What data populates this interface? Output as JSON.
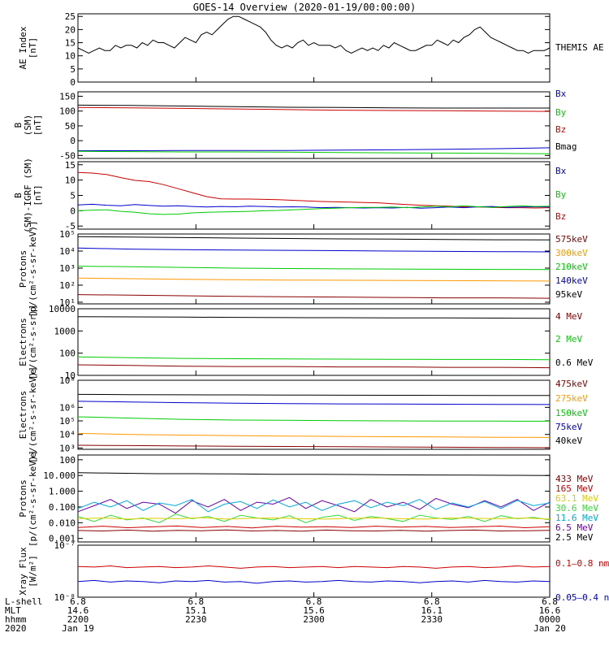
{
  "title": "GOES-14 Overview (2020-01-19/00:00:00)",
  "colors": {
    "black": "#000000",
    "red": "#cc0000",
    "green": "#00cc00",
    "blue": "#0000cc",
    "orange": "#ff9900",
    "cyan": "#00aadd",
    "darkred": "#880000",
    "lightgreen": "#33dd33",
    "yellow": "#ddcc00",
    "purple": "#6600aa"
  },
  "footer": {
    "row_labels": [
      "L-shell",
      "MLT",
      "hhmm",
      "2020"
    ],
    "columns": [
      {
        "rows": [
          "6.8",
          "14.6",
          "2200",
          "Jan 19"
        ]
      },
      {
        "rows": [
          "6.8",
          "15.1",
          "2230",
          ""
        ]
      },
      {
        "rows": [
          "6.8",
          "15.6",
          "2300",
          ""
        ]
      },
      {
        "rows": [
          "6.8",
          "16.1",
          "2330",
          ""
        ]
      },
      {
        "rows": [
          "6.8",
          "16.6",
          "0000",
          "Jan 20"
        ]
      }
    ]
  },
  "chart_data": [
    {
      "type": "line",
      "ylabel": [
        "AE Index",
        "[nT]"
      ],
      "ylim": [
        0,
        26
      ],
      "yticks": [
        "0",
        "5",
        "10",
        "15",
        "20",
        "25"
      ],
      "ytick_values": [
        0,
        5,
        10,
        15,
        20,
        25
      ],
      "series": [
        {
          "name": "THEMIS AE",
          "color": "black",
          "values": [
            13,
            12,
            11,
            12,
            13,
            12,
            12,
            14,
            13,
            14,
            14,
            13,
            15,
            14,
            16,
            15,
            15,
            14,
            13,
            15,
            17,
            16,
            15,
            18,
            19,
            18,
            20,
            22,
            24,
            25,
            25,
            24,
            23,
            22,
            21,
            19,
            16,
            14,
            13,
            14,
            13,
            15,
            16,
            14,
            15,
            14,
            14,
            14,
            13,
            14,
            12,
            11,
            12,
            13,
            12,
            13,
            12,
            14,
            13,
            15,
            14,
            13,
            12,
            12,
            13,
            14,
            14,
            16,
            15,
            14,
            16,
            15,
            17,
            18,
            20,
            21,
            19,
            17,
            16,
            15,
            14,
            13,
            12,
            12,
            11,
            12,
            12,
            12,
            13
          ]
        }
      ]
    },
    {
      "type": "line",
      "ylabel": [
        "B",
        "(SM)",
        "[nT]"
      ],
      "ylim": [
        -60,
        165
      ],
      "yticks": [
        "-50",
        "0",
        "50",
        "100",
        "150"
      ],
      "ytick_values": [
        -50,
        0,
        50,
        100,
        150
      ],
      "legend": [
        "Bx",
        "By",
        "Bz",
        "Bmag"
      ],
      "legend_colors": [
        "blue",
        "green",
        "red",
        "black"
      ],
      "series": [
        {
          "name": "Bmag",
          "color": "black",
          "values": [
            120,
            119,
            117,
            115,
            113,
            112,
            111,
            110,
            110,
            110
          ]
        },
        {
          "name": "Bz",
          "color": "red",
          "values": [
            112,
            111,
            109,
            107,
            105,
            103,
            102,
            101,
            100,
            99
          ]
        },
        {
          "name": "Bx",
          "color": "blue",
          "values": [
            -34,
            -34,
            -33,
            -33,
            -33,
            -32,
            -31,
            -29,
            -27,
            -24
          ]
        },
        {
          "name": "By",
          "color": "green",
          "values": [
            -36,
            -37,
            -38,
            -38,
            -39,
            -40,
            -41,
            -42,
            -43,
            -44
          ]
        }
      ]
    },
    {
      "type": "line",
      "ylabel": [
        "B",
        "(SM)-IGRF (SM)",
        "[nT]"
      ],
      "ylim": [
        -6,
        16
      ],
      "yticks": [
        "-5",
        "0",
        "5",
        "10",
        "15"
      ],
      "ytick_values": [
        -5,
        0,
        5,
        10,
        15
      ],
      "legend": [
        "Bx",
        "By",
        "Bz"
      ],
      "legend_colors": [
        "blue",
        "green",
        "red"
      ],
      "series": [
        {
          "name": "Bz",
          "color": "red",
          "values": [
            12.5,
            12.3,
            11.8,
            10.8,
            9.9,
            9.5,
            8.5,
            7.2,
            5.9,
            4.6,
            3.9,
            3.8,
            3.8,
            3.7,
            3.6,
            3.4,
            3.2,
            3.0,
            2.9,
            2.8,
            2.7,
            2.6,
            2.3,
            2.0,
            1.8,
            1.6,
            1.5,
            1.3,
            1.2,
            1.1,
            1.0,
            1.0,
            0.9,
            1.0
          ]
        },
        {
          "name": "Bx",
          "color": "blue",
          "values": [
            1.9,
            2.1,
            1.8,
            1.6,
            2.0,
            1.7,
            1.5,
            1.6,
            1.4,
            1.2,
            1.4,
            1.3,
            1.5,
            1.4,
            1.2,
            1.3,
            1.2,
            1.0,
            1.1,
            1.0,
            0.9,
            1.0,
            0.9,
            1.1,
            0.8,
            1.0,
            1.2,
            1.0,
            1.3,
            1.4,
            1.1,
            1.2,
            1.3,
            1.2
          ]
        },
        {
          "name": "By",
          "color": "green",
          "values": [
            0.0,
            0.2,
            0.3,
            -0.2,
            -0.5,
            -1.0,
            -1.2,
            -1.1,
            -0.7,
            -0.5,
            -0.4,
            -0.3,
            -0.2,
            0.0,
            0.1,
            0.3,
            0.5,
            0.7,
            0.8,
            1.0,
            1.1,
            1.1,
            1.2,
            1.0,
            1.2,
            1.5,
            1.3,
            1.6,
            1.3,
            1.1,
            1.4,
            1.6,
            1.4,
            1.5
          ]
        }
      ]
    },
    {
      "type": "line",
      "scale": "log",
      "ylabel": [
        "Protons",
        "[p/(cm²-s-sr-keV)]"
      ],
      "ylim": [
        8,
        100000
      ],
      "yticks": [
        "10¹",
        "10²",
        "10³",
        "10⁴",
        "10⁵"
      ],
      "ytick_values": [
        10,
        100,
        1000,
        10000,
        100000
      ],
      "legend": [
        "575keV",
        "300keV",
        "210keV",
        "140keV",
        "95keV"
      ],
      "legend_colors": [
        "darkred",
        "orange",
        "green",
        "blue",
        "black"
      ],
      "series": [
        {
          "name": "95keV",
          "color": "black",
          "values": [
            70000,
            66000,
            62000,
            58000,
            55000,
            52000,
            50000,
            48000,
            46000,
            45000
          ]
        },
        {
          "name": "140keV",
          "color": "blue",
          "values": [
            15000,
            13000,
            12000,
            11500,
            11000,
            10500,
            10000,
            9600,
            9300,
            9000
          ]
        },
        {
          "name": "210keV",
          "color": "green",
          "values": [
            1300,
            1200,
            1100,
            1000,
            950,
            900,
            880,
            860,
            840,
            820
          ]
        },
        {
          "name": "300keV",
          "color": "orange",
          "values": [
            260,
            240,
            220,
            210,
            200,
            195,
            190,
            185,
            180,
            175
          ]
        },
        {
          "name": "575keV",
          "color": "darkred",
          "values": [
            28,
            26,
            24,
            22,
            21,
            20,
            19,
            18,
            18,
            17
          ]
        }
      ]
    },
    {
      "type": "line",
      "scale": "log",
      "ylabel": [
        "Electrons",
        "[e/(cm²-s-sr)]"
      ],
      "ylim": [
        10,
        10000
      ],
      "yticks": [
        "10",
        "100",
        "1000",
        "10000"
      ],
      "ytick_values": [
        10,
        100,
        1000,
        10000
      ],
      "legend": [
        "4 MeV",
        "2 MeV",
        "0.6 MeV"
      ],
      "legend_colors": [
        "darkred",
        "green",
        "black"
      ],
      "series": [
        {
          "name": "0.6 MeV",
          "color": "black",
          "values": [
            4400,
            4300,
            4200,
            4100,
            4000,
            3950,
            3900,
            3850,
            3800,
            3700
          ]
        },
        {
          "name": "2 MeV",
          "color": "green",
          "values": [
            68,
            62,
            58,
            56,
            55,
            54,
            53,
            52,
            52,
            51
          ]
        },
        {
          "name": "4 MeV",
          "color": "darkred",
          "values": [
            30,
            28,
            26,
            25,
            25,
            24,
            24,
            23,
            23,
            22
          ]
        }
      ]
    },
    {
      "type": "line",
      "scale": "log",
      "ylabel": [
        "Electrons",
        "[e/(cm²-s-sr-keV)]"
      ],
      "ylim": [
        800,
        100000000
      ],
      "yticks": [
        "10³",
        "10⁴",
        "10⁵",
        "10⁶",
        "10⁸"
      ],
      "ytick_values": [
        1000,
        10000,
        100000,
        1000000,
        100000000
      ],
      "legend": [
        "475keV",
        "275keV",
        "150keV",
        "75keV",
        "40keV"
      ],
      "legend_colors": [
        "darkred",
        "orange",
        "green",
        "blue",
        "black"
      ],
      "series": [
        {
          "name": "40keV",
          "color": "black",
          "values": [
            9000000,
            8700000,
            8500000,
            8300000,
            8100000,
            7900000,
            7800000,
            7700000,
            7600000,
            7500000
          ]
        },
        {
          "name": "75keV",
          "color": "blue",
          "values": [
            2800000,
            2500000,
            2200000,
            2000000,
            1900000,
            1800000,
            1750000,
            1700000,
            1650000,
            1600000
          ]
        },
        {
          "name": "150keV",
          "color": "green",
          "values": [
            200000,
            160000,
            130000,
            115000,
            110000,
            105000,
            100000,
            98000,
            96000,
            95000
          ]
        },
        {
          "name": "275keV",
          "color": "orange",
          "values": [
            12000,
            10000,
            9000,
            8200,
            7600,
            7200,
            6800,
            6500,
            6200,
            6000
          ]
        },
        {
          "name": "475keV",
          "color": "darkred",
          "values": [
            1600,
            1500,
            1400,
            1350,
            1300,
            1250,
            1200,
            1150,
            1100,
            1050
          ]
        }
      ]
    },
    {
      "type": "line",
      "scale": "log",
      "ylabel": [
        "Protons",
        "[p/(cm²-s-sr-keV)]"
      ],
      "ylim": [
        0.0006,
        200
      ],
      "yticks": [
        "0.001",
        "0.010",
        "0.100",
        "1.000",
        "10.000",
        "100"
      ],
      "ytick_values": [
        0.001,
        0.01,
        0.1,
        1,
        10,
        100
      ],
      "legend": [
        "433 MeV",
        "165 MeV",
        "63.1 MeV",
        "30.6 MeV",
        "11.6 MeV",
        "6.5 MeV",
        "2.5 MeV"
      ],
      "legend_colors": [
        "darkred",
        "red",
        "yellow",
        "lightgreen",
        "cyan",
        "purple",
        "black"
      ],
      "series": [
        {
          "name": "2.5 MeV",
          "color": "black",
          "values": [
            15,
            14,
            13,
            13,
            12.5,
            12,
            12,
            11.5,
            11,
            10.8,
            10.5,
            10.2,
            10
          ]
        },
        {
          "name": "6.5 MeV",
          "color": "purple",
          "values": [
            0.05,
            0.12,
            0.3,
            0.08,
            0.2,
            0.15,
            0.04,
            0.25,
            0.1,
            0.3,
            0.06,
            0.2,
            0.15,
            0.4,
            0.08,
            0.25,
            0.12,
            0.05,
            0.3,
            0.1,
            0.2,
            0.07,
            0.35,
            0.15,
            0.09,
            0.25,
            0.1,
            0.3,
            0.06,
            0.2
          ]
        },
        {
          "name": "11.6 MeV",
          "color": "cyan",
          "values": [
            0.08,
            0.2,
            0.1,
            0.25,
            0.06,
            0.18,
            0.12,
            0.3,
            0.05,
            0.15,
            0.22,
            0.08,
            0.28,
            0.1,
            0.2,
            0.06,
            0.15,
            0.25,
            0.09,
            0.2,
            0.12,
            0.3,
            0.07,
            0.18,
            0.1,
            0.22,
            0.08,
            0.26,
            0.12,
            0.18
          ]
        },
        {
          "name": "30.6 MeV",
          "color": "lightgreen",
          "values": [
            0.025,
            0.012,
            0.03,
            0.015,
            0.02,
            0.01,
            0.035,
            0.018,
            0.025,
            0.012,
            0.03,
            0.02,
            0.015,
            0.028,
            0.01,
            0.022,
            0.03,
            0.014,
            0.025,
            0.018,
            0.012,
            0.03,
            0.02,
            0.016,
            0.025,
            0.012,
            0.028,
            0.018,
            0.022,
            0.015
          ]
        },
        {
          "name": "63.1 MeV",
          "color": "yellow",
          "values": [
            0.018,
            0.02,
            0.017,
            0.019,
            0.018,
            0.021,
            0.017,
            0.019,
            0.02,
            0.018,
            0.017,
            0.019,
            0.02,
            0.018,
            0.017,
            0.02,
            0.019,
            0.018,
            0.02,
            0.017
          ]
        },
        {
          "name": "165 MeV",
          "color": "red",
          "values": [
            0.005,
            0.006,
            0.0048,
            0.0055,
            0.0062,
            0.005,
            0.0058,
            0.0047,
            0.006,
            0.0052,
            0.0056,
            0.0049,
            0.006,
            0.0053,
            0.0058,
            0.005,
            0.0055,
            0.0061,
            0.0048,
            0.0056
          ]
        },
        {
          "name": "433 MeV",
          "color": "darkred",
          "values": [
            0.0032,
            0.003,
            0.0034,
            0.0029,
            0.0033,
            0.0031,
            0.0035,
            0.003,
            0.0032,
            0.0029,
            0.0034,
            0.0031,
            0.003,
            0.0033,
            0.0029,
            0.0032,
            0.0034,
            0.003,
            0.0031,
            0.0033
          ]
        }
      ]
    },
    {
      "type": "line",
      "scale": "log",
      "ylabel": [
        "Xray Flux",
        "[W/m²]"
      ],
      "ylim": [
        1e-08,
        1e-07
      ],
      "yticks": [
        "10⁻⁸",
        "10⁻⁷"
      ],
      "ytick_values": [
        1e-08,
        1e-07
      ],
      "legend": [
        "0.1–0.8 nm",
        "0.05–0.4 nm"
      ],
      "legend_colors": [
        "red",
        "blue"
      ],
      "series": [
        {
          "name": "0.1–0.8 nm",
          "color": "red",
          "values": [
            3.9e-08,
            3.8e-08,
            4e-08,
            3.7e-08,
            3.8e-08,
            3.9e-08,
            3.7e-08,
            3.8e-08,
            4e-08,
            3.8e-08,
            3.6e-08,
            3.8e-08,
            3.9e-08,
            3.7e-08,
            3.8e-08,
            3.9e-08,
            3.7e-08,
            3.9e-08,
            3.8e-08,
            3.7e-08,
            3.9e-08,
            3.8e-08,
            3.6e-08,
            3.8e-08,
            3.9e-08,
            3.7e-08,
            3.8e-08,
            4e-08,
            3.8e-08,
            3.9e-08
          ]
        },
        {
          "name": "0.05–0.4 nm",
          "color": "blue",
          "values": [
            2e-08,
            2.1e-08,
            1.95e-08,
            2.05e-08,
            2e-08,
            1.9e-08,
            2.05e-08,
            2e-08,
            2.1e-08,
            1.95e-08,
            2e-08,
            1.85e-08,
            2e-08,
            2.05e-08,
            1.95e-08,
            2e-08,
            2.1e-08,
            2e-08,
            1.95e-08,
            2.05e-08,
            2e-08,
            1.9e-08,
            2e-08,
            2.05e-08,
            1.95e-08,
            2.1e-08,
            2e-08,
            1.95e-08,
            2.05e-08,
            2e-08
          ]
        }
      ]
    }
  ]
}
